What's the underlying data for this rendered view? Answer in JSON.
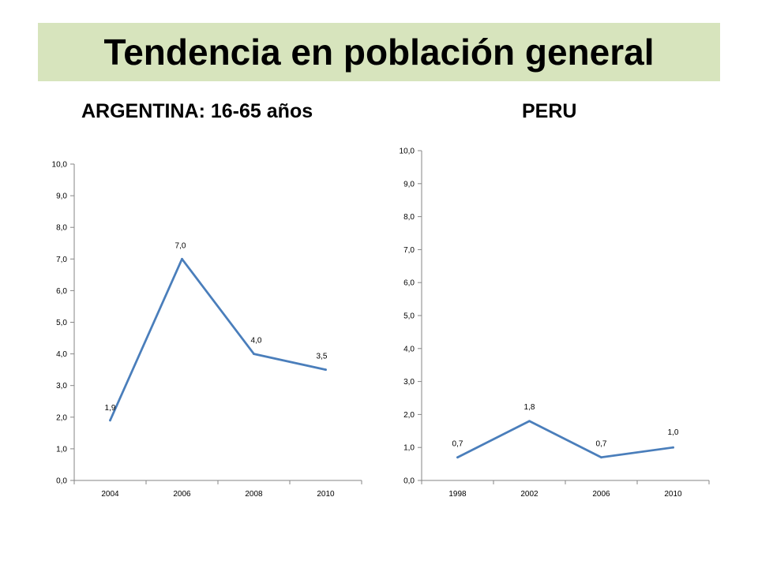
{
  "title": "Tendencia en población general",
  "theme": {
    "band_color": "#d7e4bd",
    "line_color": "#4a7ebb",
    "axis_color": "#868686"
  },
  "subtitles": {
    "argentina": "ARGENTINA: 16-65 años",
    "peru": "PERU"
  },
  "chart_data": [
    {
      "type": "line",
      "categories": [
        "2004",
        "2006",
        "2008",
        "2010"
      ],
      "series": [
        {
          "values": [
            1.9,
            7.0,
            4.0,
            3.5
          ]
        }
      ],
      "data_labels": [
        "1,9",
        "7,0",
        "4,0",
        "3,5"
      ],
      "ylim": [
        0,
        10
      ],
      "y_ticks": [
        "0,0",
        "1,0",
        "2,0",
        "3,0",
        "4,0",
        "5,0",
        "6,0",
        "7,0",
        "8,0",
        "9,0",
        "10,0"
      ],
      "grid": false
    },
    {
      "type": "line",
      "categories": [
        "1998",
        "2002",
        "2006",
        "2010"
      ],
      "series": [
        {
          "values": [
            0.7,
            1.8,
            0.7,
            1.0
          ]
        }
      ],
      "data_labels": [
        "0,7",
        "1,8",
        "0,7",
        "1,0"
      ],
      "ylim": [
        0,
        10
      ],
      "y_ticks": [
        "0,0",
        "1,0",
        "2,0",
        "3,0",
        "4,0",
        "5,0",
        "6,0",
        "7,0",
        "8,0",
        "9,0",
        "10,0"
      ],
      "grid": false
    }
  ]
}
